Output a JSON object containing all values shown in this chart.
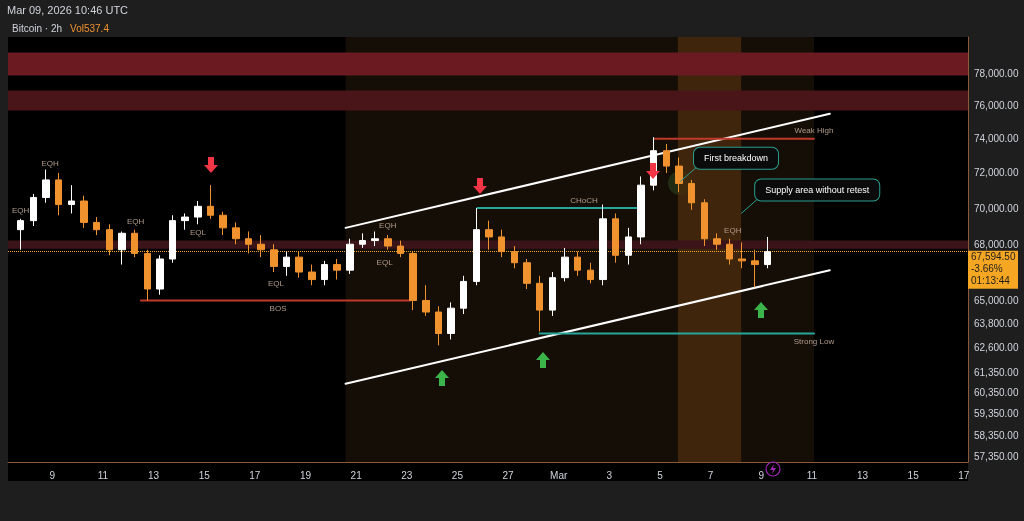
{
  "chart_data": {
    "type": "candlestick",
    "title": "Bitcoin · 2h",
    "subtitle": "Mar 09, 2026 10:46 UTC",
    "x": [
      "2026-02-07T18:00",
      "2026-02-08T06:00",
      "2026-02-08T18:00",
      "2026-02-09T06:00",
      "2026-02-09T18:00",
      "2026-02-10T06:00",
      "2026-02-10T18:00",
      "2026-02-11T06:00",
      "2026-02-11T18:00",
      "2026-02-12T06:00",
      "2026-02-12T18:00",
      "2026-02-13T06:00",
      "2026-02-13T18:00",
      "2026-02-14T06:00",
      "2026-02-14T18:00",
      "2026-02-15T06:00",
      "2026-02-15T18:00",
      "2026-02-16T06:00",
      "2026-02-16T18:00",
      "2026-02-17T06:00",
      "2026-02-17T18:00",
      "2026-02-18T06:00",
      "2026-02-18T18:00",
      "2026-02-19T06:00",
      "2026-02-19T18:00",
      "2026-02-20T06:00",
      "2026-02-20T18:00",
      "2026-02-21T06:00",
      "2026-02-21T18:00",
      "2026-02-22T06:00",
      "2026-02-22T18:00",
      "2026-02-23T06:00",
      "2026-02-23T18:00",
      "2026-02-24T06:00",
      "2026-02-24T18:00",
      "2026-02-25T06:00",
      "2026-02-25T18:00",
      "2026-02-26T06:00",
      "2026-02-26T18:00",
      "2026-02-27T06:00",
      "2026-02-27T18:00",
      "2026-02-28T06:00",
      "2026-02-28T18:00",
      "2026-03-01T06:00",
      "2026-03-01T18:00",
      "2026-03-02T06:00",
      "2026-03-02T18:00",
      "2026-03-03T06:00",
      "2026-03-03T18:00",
      "2026-03-04T06:00",
      "2026-03-04T18:00",
      "2026-03-05T06:00",
      "2026-03-05T18:00",
      "2026-03-06T06:00",
      "2026-03-06T18:00",
      "2026-03-07T06:00",
      "2026-03-07T18:00",
      "2026-03-08T06:00",
      "2026-03-08T18:00",
      "2026-03-09T06:00"
    ],
    "ohlc": [
      [
        68800,
        69400,
        67700,
        69300
      ],
      [
        69300,
        70800,
        69000,
        70600
      ],
      [
        70600,
        72200,
        70300,
        71600
      ],
      [
        71600,
        72000,
        69600,
        70200
      ],
      [
        70200,
        71300,
        69700,
        70400
      ],
      [
        70400,
        70700,
        68900,
        69200
      ],
      [
        69200,
        69500,
        68500,
        68800
      ],
      [
        68800,
        69100,
        67400,
        67700
      ],
      [
        67700,
        68700,
        66900,
        68600
      ],
      [
        68600,
        68800,
        67300,
        67500
      ],
      [
        67500,
        67700,
        65000,
        65600
      ],
      [
        65600,
        67400,
        65300,
        67200
      ],
      [
        67200,
        69600,
        67000,
        69300
      ],
      [
        69300,
        69700,
        68800,
        69500
      ],
      [
        69500,
        70400,
        69100,
        70100
      ],
      [
        70100,
        71300,
        69400,
        69600
      ],
      [
        69600,
        69800,
        68500,
        68900
      ],
      [
        68900,
        69200,
        68000,
        68300
      ],
      [
        68300,
        68700,
        67500,
        68000
      ],
      [
        68000,
        68500,
        67300,
        67700
      ],
      [
        67700,
        68000,
        66500,
        66800
      ],
      [
        66800,
        67600,
        66300,
        67300
      ],
      [
        67300,
        67600,
        66200,
        66500
      ],
      [
        66500,
        66900,
        65800,
        66100
      ],
      [
        66100,
        67100,
        65800,
        66900
      ],
      [
        66900,
        67200,
        66100,
        66600
      ],
      [
        66600,
        68300,
        66400,
        68000
      ],
      [
        68000,
        68600,
        67800,
        68200
      ],
      [
        68200,
        68700,
        67900,
        68300
      ],
      [
        68300,
        68500,
        67700,
        67900
      ],
      [
        67900,
        68200,
        67300,
        67500
      ],
      [
        67500,
        67600,
        64500,
        65000
      ],
      [
        65000,
        65800,
        64200,
        64400
      ],
      [
        64400,
        64700,
        62700,
        63300
      ],
      [
        63300,
        64900,
        63000,
        64600
      ],
      [
        64600,
        66300,
        64300,
        66000
      ],
      [
        66000,
        70000,
        65800,
        68800
      ],
      [
        68800,
        69300,
        67700,
        68400
      ],
      [
        68400,
        68800,
        67300,
        67600
      ],
      [
        67600,
        67900,
        66700,
        67000
      ],
      [
        67000,
        67200,
        65600,
        65900
      ],
      [
        65900,
        66300,
        63400,
        64500
      ],
      [
        64500,
        66500,
        64200,
        66200
      ],
      [
        66200,
        67800,
        66000,
        67300
      ],
      [
        67300,
        67600,
        66300,
        66600
      ],
      [
        66600,
        67000,
        65900,
        66100
      ],
      [
        66100,
        70200,
        65800,
        69400
      ],
      [
        69400,
        69700,
        67000,
        67400
      ],
      [
        67400,
        68900,
        66900,
        68400
      ],
      [
        68400,
        71800,
        68000,
        71300
      ],
      [
        71300,
        74100,
        71000,
        73300
      ],
      [
        73300,
        73700,
        72000,
        72400
      ],
      [
        72400,
        72900,
        70900,
        71400
      ],
      [
        71400,
        71600,
        69900,
        70300
      ],
      [
        70300,
        70500,
        67900,
        68300
      ],
      [
        68300,
        68600,
        67700,
        68000
      ],
      [
        68000,
        68300,
        66900,
        67200
      ],
      [
        67200,
        68100,
        66700,
        67100
      ],
      [
        67100,
        67700,
        65700,
        66900
      ],
      [
        66900,
        68400,
        66700,
        67594.5
      ]
    ],
    "series": [
      {
        "type": "line",
        "color": "#ffffff",
        "x": [
          "2026-02-20T14:00",
          "2026-03-11T17:00"
        ],
        "values": [
          68900,
          75500
        ]
      },
      {
        "type": "line",
        "color": "#ffffff",
        "x": [
          "2026-02-20T14:00",
          "2026-03-11T17:00"
        ],
        "values": [
          60800,
          66600
        ]
      },
      {
        "type": "line",
        "color": "#c0392b",
        "x": [
          "2026-02-12T12:00",
          "2026-02-23T03:00"
        ],
        "values": [
          65000,
          65000
        ]
      },
      {
        "type": "line",
        "color": "#26a69a",
        "x": [
          "2026-02-25T19:00",
          "2026-03-04T05:00"
        ],
        "values": [
          70000,
          70000
        ]
      },
      {
        "type": "line",
        "color": "#c0392b",
        "x": [
          "2026-03-04T19:00",
          "2026-03-11T02:00"
        ],
        "values": [
          74000,
          74000
        ]
      },
      {
        "type": "line",
        "color": "#26a69a",
        "x": [
          "2026-02-28T06:00",
          "2026-03-11T02:00"
        ],
        "values": [
          63300,
          63300
        ]
      }
    ],
    "xlim": [
      "2026-02-07T06:00",
      "2026-03-17T04:00"
    ],
    "xticks": [
      {
        "value": "2026-02-09",
        "label": "9"
      },
      {
        "value": "2026-02-11",
        "label": "11"
      },
      {
        "value": "2026-02-13",
        "label": "13"
      },
      {
        "value": "2026-02-15",
        "label": "15"
      },
      {
        "value": "2026-02-17",
        "label": "17"
      },
      {
        "value": "2026-02-19",
        "label": "19"
      },
      {
        "value": "2026-02-21",
        "label": "21"
      },
      {
        "value": "2026-02-23",
        "label": "23"
      },
      {
        "value": "2026-02-25",
        "label": "25"
      },
      {
        "value": "2026-02-27",
        "label": "27"
      },
      {
        "value": "2026-03-01",
        "label": "Mar"
      },
      {
        "value": "2026-03-03",
        "label": "3"
      },
      {
        "value": "2026-03-05",
        "label": "5"
      },
      {
        "value": "2026-03-07",
        "label": "7"
      },
      {
        "value": "2026-03-09",
        "label": "9"
      },
      {
        "value": "2026-03-11",
        "label": "11"
      },
      {
        "value": "2026-03-13",
        "label": "13"
      },
      {
        "value": "2026-03-15",
        "label": "15"
      },
      {
        "value": "2026-03-17",
        "label": "17"
      }
    ],
    "ylim": [
      57100,
      80300
    ],
    "yticks": [
      {
        "value": 57350,
        "label": "57,350.00"
      },
      {
        "value": 58350,
        "label": "58,350.00"
      },
      {
        "value": 59350,
        "label": "59,350.00"
      },
      {
        "value": 60350,
        "label": "60,350.00"
      },
      {
        "value": 61350,
        "label": "61,350.00"
      },
      {
        "value": 62600,
        "label": "62,600.00"
      },
      {
        "value": 63800,
        "label": "63,800.00"
      },
      {
        "value": 65000,
        "label": "65,000.00"
      },
      {
        "value": 68000,
        "label": "68,000.00"
      },
      {
        "value": 70000,
        "label": "70,000.00"
      },
      {
        "value": 72000,
        "label": "72,000.00"
      },
      {
        "value": 74000,
        "label": "74,000.00"
      },
      {
        "value": 76000,
        "label": "76,000.00"
      },
      {
        "value": 78000,
        "label": "78,000.00"
      }
    ],
    "log": true,
    "line_style": "solid",
    "bands": [
      {
        "axis": "x",
        "from": "2026-02-20T14:00",
        "to": "2026-03-11T02:00",
        "color": "#1a1108"
      },
      {
        "axis": "x",
        "from": "2026-03-05T17:00",
        "to": "2026-03-08T05:00",
        "color": "#4a2c0c"
      },
      {
        "axis": "y",
        "from": 77850,
        "to": 79300,
        "color": "#6b1a22"
      },
      {
        "axis": "y",
        "from": 75700,
        "to": 76930,
        "color": "#4a1519"
      },
      {
        "axis": "y",
        "from": 67750,
        "to": 68200,
        "color": "#3a1418"
      }
    ],
    "ref_lines": [
      {
        "axis": "y",
        "value": 67594.5,
        "label": "67,594.50",
        "color": "#f5a623",
        "line_style": "dotted"
      }
    ],
    "annotations": [
      "Vol537.4",
      "-3.66%",
      "01:13:44",
      {
        "text": "EQH",
        "x": "2026-02-07T18:00",
        "y": 69400
      },
      {
        "text": "EQH",
        "x": "2026-02-08T22:00",
        "y": 72100
      },
      {
        "text": "EQH",
        "x": "2026-02-12T07:00",
        "y": 68800
      },
      {
        "text": "EQL",
        "x": "2026-02-14T18:00",
        "y": 69100
      },
      {
        "text": "EQL",
        "x": "2026-02-17T20:00",
        "y": 66300
      },
      {
        "text": "EQH",
        "x": "2026-02-22T06:00",
        "y": 68600
      },
      {
        "text": "EQL",
        "x": "2026-02-22T03:00",
        "y": 67450
      },
      {
        "text": "BOS",
        "x": "2026-02-17T22:00",
        "y": 65000
      },
      {
        "text": "CHoCH",
        "x": "2026-03-02T00:00",
        "y": 70000
      },
      {
        "text": "EQH",
        "x": "2026-03-07T21:00",
        "y": 68300
      },
      {
        "text": "Weak High",
        "x": "2026-03-11T02:00",
        "y": 74000
      },
      {
        "text": "Strong Low",
        "x": "2026-03-11T02:00",
        "y": 63300
      },
      {
        "text": "First breakdown",
        "x": "2026-03-05T19:00",
        "y": 71500
      },
      {
        "text": "Supply area without retest",
        "x": "2026-03-08T05:00",
        "y": 69700
      }
    ]
  }
}
